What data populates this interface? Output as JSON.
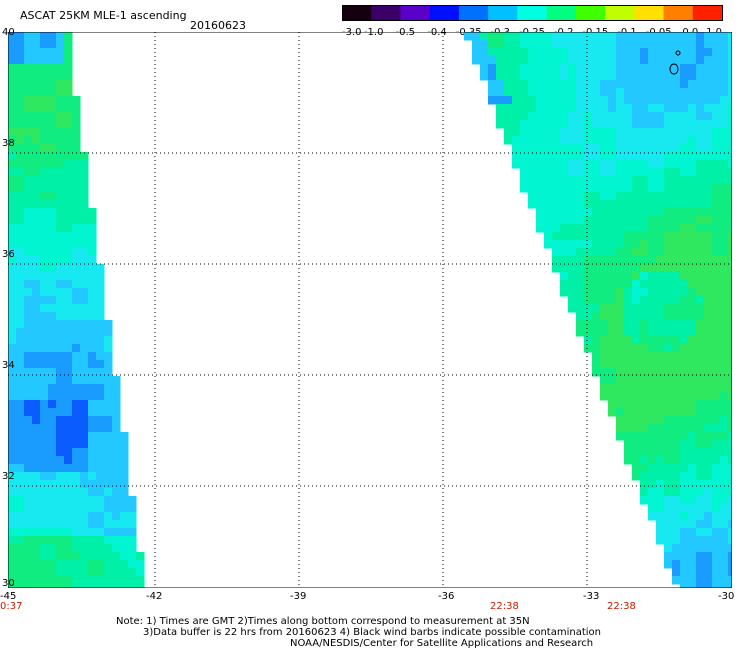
{
  "header": {
    "title": "ASCAT 25KM MLE-1 ascending",
    "date": "20160623"
  },
  "colorbar": {
    "labels": [
      "-3.0",
      "-1.0",
      "-0.5",
      "-0.4",
      "-0.35",
      "-0.3",
      "-0.25",
      "-0.2",
      "-0.15",
      "-0.1",
      "-0.05",
      "0.0",
      "1.0"
    ],
    "colors": [
      "#150010",
      "#3a0068",
      "#5a00c8",
      "#0010ff",
      "#0070ff",
      "#00c0ff",
      "#00ffe0",
      "#00ff80",
      "#40ff00",
      "#c0ff00",
      "#ffe000",
      "#ff8000",
      "#ff2000"
    ]
  },
  "map": {
    "lon_labels": [
      "-45",
      "-42",
      "-39",
      "-36",
      "-33",
      "-30"
    ],
    "lat_labels": [
      "40",
      "38",
      "36",
      "34",
      "32",
      "30"
    ],
    "lon_range": [
      -45,
      -30
    ],
    "lat_range": [
      30,
      40
    ],
    "grid": "dotted",
    "swath_times": [
      "0:37",
      "22:38",
      "22:38"
    ]
  },
  "notes": {
    "line1": "Note: 1) Times are GMT 2)Times along bottom correspond to measurement at 35N",
    "line2": "3)Data buffer is 22 hrs from 20160623 4) Black wind barbs indicate possible contamination",
    "line3": "NOAA/NESDIS/Center for Satellite Applications and Research"
  }
}
